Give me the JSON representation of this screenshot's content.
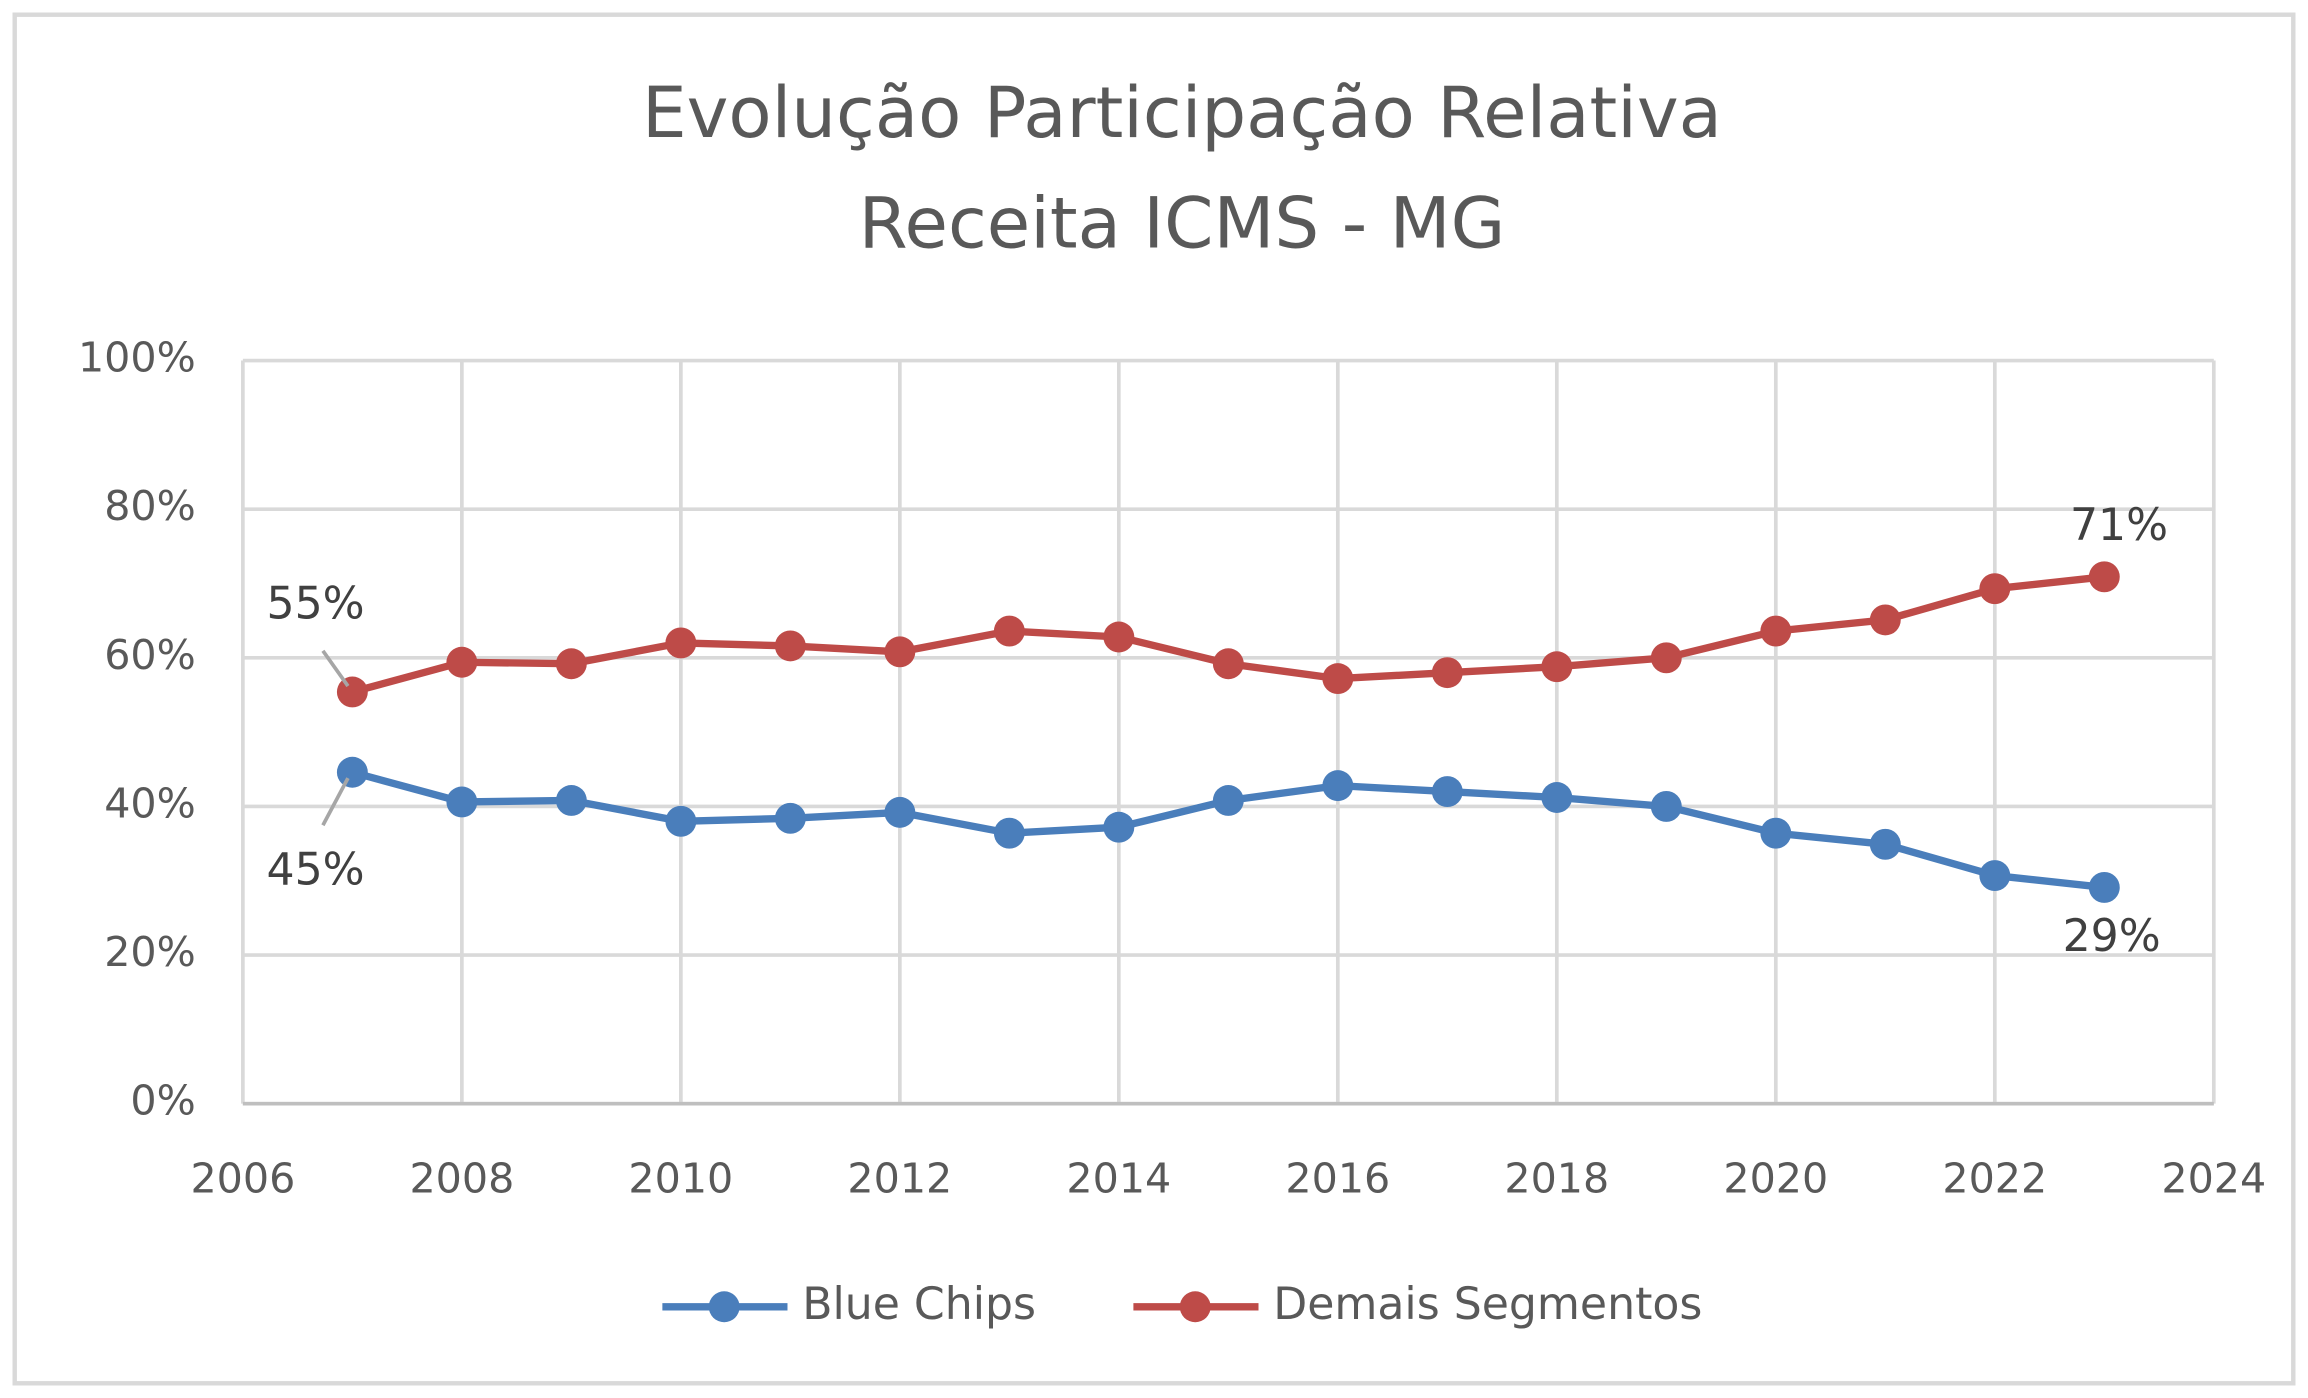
{
  "chart_data": {
    "type": "line",
    "title": [
      "Evolução Participação Relativa",
      "Receita ICMS - MG"
    ],
    "x": [
      2007,
      2008,
      2009,
      2010,
      2011,
      2012,
      2013,
      2014,
      2015,
      2016,
      2017,
      2018,
      2019,
      2020,
      2021,
      2022,
      2023
    ],
    "series": [
      {
        "name": "Blue Chips",
        "color": "#4a7ebb",
        "values": [
          44.6,
          40.6,
          40.8,
          38.0,
          38.4,
          39.2,
          36.4,
          37.2,
          40.8,
          42.8,
          42.0,
          41.2,
          40.0,
          36.4,
          34.9,
          30.7,
          29.1
        ],
        "value_labels": [
          "45%",
          null,
          null,
          null,
          null,
          null,
          null,
          null,
          null,
          null,
          null,
          null,
          null,
          null,
          null,
          null,
          "29%"
        ]
      },
      {
        "name": "Demais Segmentos",
        "color": "#be4b48",
        "values": [
          55.4,
          59.4,
          59.2,
          62.0,
          61.6,
          60.8,
          63.6,
          62.8,
          59.2,
          57.2,
          58.0,
          58.8,
          60.0,
          63.6,
          65.1,
          69.3,
          70.9
        ],
        "value_labels": [
          "55%",
          null,
          null,
          null,
          null,
          null,
          null,
          null,
          null,
          null,
          null,
          null,
          null,
          null,
          null,
          null,
          "71%"
        ]
      }
    ],
    "xlim": [
      2006,
      2024
    ],
    "xticks": [
      2006,
      2008,
      2010,
      2012,
      2014,
      2016,
      2018,
      2020,
      2022,
      2024
    ],
    "ylim": [
      0,
      100
    ],
    "yticks": [
      {
        "value": 0,
        "label": "0%"
      },
      {
        "value": 20,
        "label": "20%"
      },
      {
        "value": 40,
        "label": "40%"
      },
      {
        "value": 60,
        "label": "60%"
      },
      {
        "value": 80,
        "label": "80%"
      },
      {
        "value": 100,
        "label": "100%"
      }
    ],
    "grid": true,
    "legend": "bottom"
  }
}
